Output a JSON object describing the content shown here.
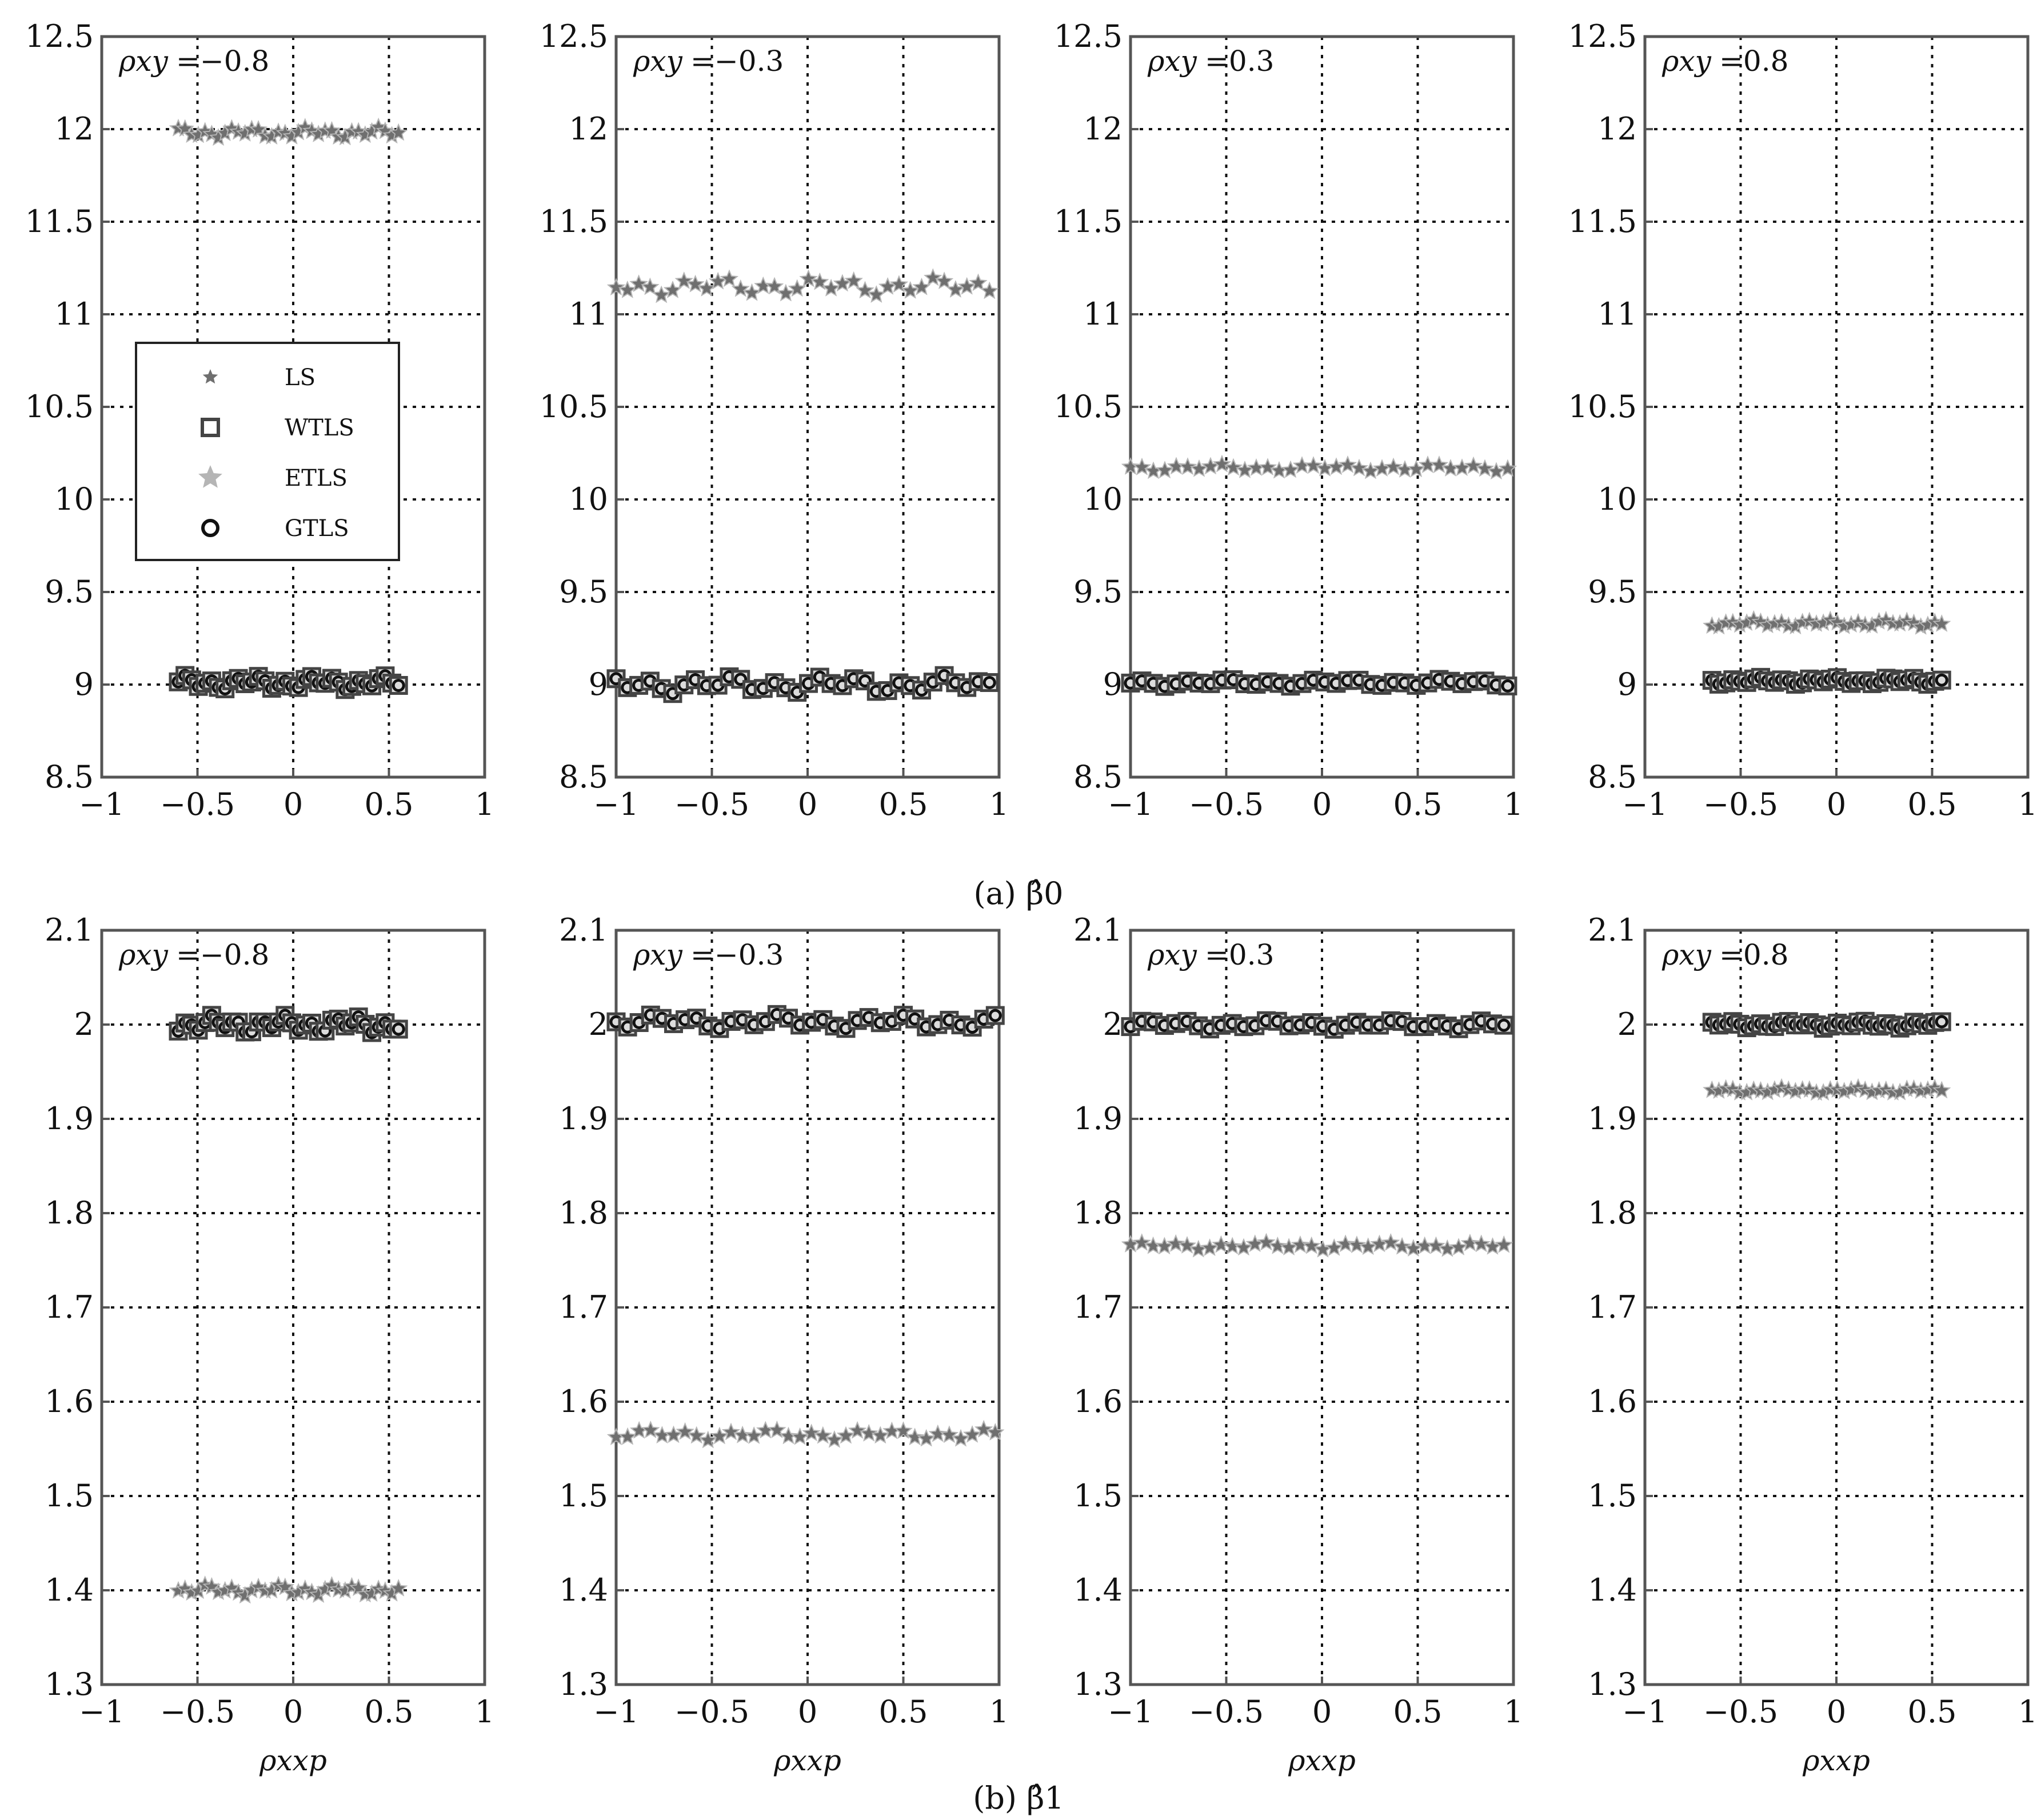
{
  "colors": {
    "ls": "#6f6f6f",
    "wtls": "#444444",
    "etls": "#b5b5b5",
    "gtls": "#111111",
    "grid": "#111111",
    "axes": "#555555"
  },
  "captions": {
    "a": "(a) β̂0",
    "b": "(b) β̂1"
  },
  "xlabel": "ρxxp",
  "legend": {
    "items": [
      {
        "key": "ls",
        "label": "LS",
        "marker": "star"
      },
      {
        "key": "wtls",
        "label": "WTLS",
        "marker": "square"
      },
      {
        "key": "etls",
        "label": "ETLS",
        "marker": "star-light"
      },
      {
        "key": "gtls",
        "label": "GTLS",
        "marker": "circle"
      }
    ]
  },
  "chart_data": [
    {
      "id": "a1",
      "type": "scatter",
      "row": "a",
      "panel_label": "ρxy",
      "panel_value": "=−0.8",
      "xlim": [
        -1,
        1
      ],
      "ylim": [
        8.5,
        12.5
      ],
      "xticks": [
        "−1",
        "−0.5",
        "0",
        "0.5",
        "1"
      ],
      "yticks": [
        "8.5",
        "9",
        "9.5",
        "10",
        "10.5",
        "11",
        "11.5",
        "12",
        "12.5"
      ],
      "x_range": [
        -0.6,
        0.55
      ],
      "ls": 11.98,
      "tls": 9.01,
      "ls_amp": 0.03,
      "tls_amp": 0.04,
      "legend": true
    },
    {
      "id": "a2",
      "type": "scatter",
      "row": "a",
      "panel_label": "ρxy",
      "panel_value": "=−0.3",
      "xlim": [
        -1,
        1
      ],
      "ylim": [
        8.5,
        12.5
      ],
      "xticks": [
        "−1",
        "−0.5",
        "0",
        "0.5",
        "1"
      ],
      "yticks": [
        "8.5",
        "9",
        "9.5",
        "10",
        "10.5",
        "11",
        "11.5",
        "12",
        "12.5"
      ],
      "x_range": [
        -1,
        0.95
      ],
      "ls": 11.15,
      "tls": 9.0,
      "ls_amp": 0.05,
      "tls_amp": 0.05,
      "legend": false
    },
    {
      "id": "a3",
      "type": "scatter",
      "row": "a",
      "panel_label": "ρxy",
      "panel_value": "=0.3",
      "xlim": [
        -1,
        1
      ],
      "ylim": [
        8.5,
        12.5
      ],
      "xticks": [
        "−1",
        "−0.5",
        "0",
        "0.5",
        "1"
      ],
      "yticks": [
        "8.5",
        "9",
        "9.5",
        "10",
        "10.5",
        "11",
        "11.5",
        "12",
        "12.5"
      ],
      "x_range": [
        -1,
        0.97
      ],
      "ls": 10.17,
      "tls": 9.01,
      "ls_amp": 0.02,
      "tls_amp": 0.02,
      "legend": false
    },
    {
      "id": "a4",
      "type": "scatter",
      "row": "a",
      "panel_label": "ρxy",
      "panel_value": "=0.8",
      "xlim": [
        -1,
        1
      ],
      "ylim": [
        8.5,
        12.5
      ],
      "xticks": [
        "−1",
        "−0.5",
        "0",
        "0.5",
        "1"
      ],
      "yticks": [
        "8.5",
        "9",
        "9.5",
        "10",
        "10.5",
        "11",
        "11.5",
        "12",
        "12.5"
      ],
      "x_range": [
        -0.65,
        0.55
      ],
      "ls": 9.33,
      "tls": 9.02,
      "ls_amp": 0.02,
      "tls_amp": 0.02,
      "legend": false
    },
    {
      "id": "b1",
      "type": "scatter",
      "row": "b",
      "panel_label": "ρxy",
      "panel_value": "=−0.8",
      "xlim": [
        -1,
        1
      ],
      "ylim": [
        1.3,
        2.1
      ],
      "xticks": [
        "−1",
        "−0.5",
        "0",
        "0.5",
        "1"
      ],
      "yticks": [
        "1.3",
        "1.4",
        "1.5",
        "1.6",
        "1.7",
        "1.8",
        "1.9",
        "2",
        "2.1"
      ],
      "x_range": [
        -0.6,
        0.55
      ],
      "ls": 1.4,
      "tls": 2.0,
      "ls_amp": 0.006,
      "tls_amp": 0.01,
      "legend": false
    },
    {
      "id": "b2",
      "type": "scatter",
      "row": "b",
      "panel_label": "ρxy",
      "panel_value": "=−0.3",
      "xlim": [
        -1,
        1
      ],
      "ylim": [
        1.3,
        2.1
      ],
      "xticks": [
        "−1",
        "−0.5",
        "0",
        "0.5",
        "1"
      ],
      "yticks": [
        "1.3",
        "1.4",
        "1.5",
        "1.6",
        "1.7",
        "1.8",
        "1.9",
        "2",
        "2.1"
      ],
      "x_range": [
        -1,
        0.98
      ],
      "ls": 1.565,
      "tls": 2.003,
      "ls_amp": 0.006,
      "tls_amp": 0.008,
      "legend": false
    },
    {
      "id": "b3",
      "type": "scatter",
      "row": "b",
      "panel_label": "ρxy",
      "panel_value": "=0.3",
      "xlim": [
        -1,
        1
      ],
      "ylim": [
        1.3,
        2.1
      ],
      "xticks": [
        "−1",
        "−0.5",
        "0",
        "0.5",
        "1"
      ],
      "yticks": [
        "1.3",
        "1.4",
        "1.5",
        "1.6",
        "1.7",
        "1.8",
        "1.9",
        "2",
        "2.1"
      ],
      "x_range": [
        -1,
        0.95
      ],
      "ls": 1.765,
      "tls": 2.0,
      "ls_amp": 0.004,
      "tls_amp": 0.005,
      "legend": false
    },
    {
      "id": "b4",
      "type": "scatter",
      "row": "b",
      "panel_label": "ρxy",
      "panel_value": "=0.8",
      "xlim": [
        -1,
        1
      ],
      "ylim": [
        1.3,
        2.1
      ],
      "xticks": [
        "−1",
        "−0.5",
        "0",
        "0.5",
        "1"
      ],
      "yticks": [
        "1.3",
        "1.4",
        "1.5",
        "1.6",
        "1.7",
        "1.8",
        "1.9",
        "2",
        "2.1"
      ],
      "x_range": [
        -0.65,
        0.55
      ],
      "ls": 1.93,
      "tls": 2.0,
      "ls_amp": 0.003,
      "tls_amp": 0.004,
      "legend": false
    }
  ]
}
